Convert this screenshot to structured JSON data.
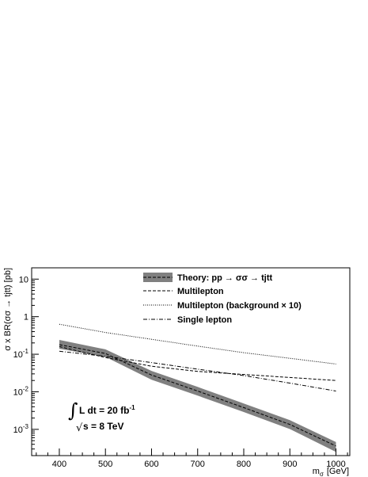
{
  "chart_data": {
    "type": "line",
    "xlabel": "m",
    "xlabel_sub": "σ",
    "xlabel_unit": "[GeV]",
    "ylabel": "σ x BR(σσ → tjtt) [pb]",
    "xlim": [
      340,
      1030
    ],
    "ylim": [
      0.0002,
      20
    ],
    "ylog": true,
    "x_ticks": [
      400,
      500,
      600,
      700,
      800,
      900,
      1000
    ],
    "x_tick_labels": [
      "400",
      "500",
      "600",
      "700",
      "800",
      "900",
      "1000"
    ],
    "y_ticks": [
      0.001,
      0.01,
      0.1,
      1,
      10
    ],
    "y_tick_labels": [
      {
        "base": "10",
        "exp": "-3"
      },
      {
        "base": "10",
        "exp": "-2"
      },
      {
        "base": "10",
        "exp": "-1"
      },
      {
        "base": "1",
        "exp": ""
      },
      {
        "base": "10",
        "exp": ""
      }
    ],
    "grid": false,
    "legend_position": "top-right",
    "series": [
      {
        "name": "Theory: pp → σσ → tjtt",
        "style": "band-dashed",
        "x": [
          400,
          500,
          600,
          700,
          800,
          900,
          1000
        ],
        "values": [
          0.18,
          0.105,
          0.028,
          0.0105,
          0.0038,
          0.00135,
          0.00036
        ],
        "band_low": [
          0.14,
          0.085,
          0.021,
          0.0079,
          0.0029,
          0.00102,
          0.00025
        ],
        "band_high": [
          0.24,
          0.135,
          0.036,
          0.0135,
          0.0049,
          0.00175,
          0.00046
        ]
      },
      {
        "name": "Multilepton",
        "style": "dashed",
        "x": [
          400,
          500,
          600,
          700,
          800,
          900,
          1000
        ],
        "values": [
          0.16,
          0.082,
          0.048,
          0.035,
          0.029,
          0.024,
          0.02
        ]
      },
      {
        "name": "Multilepton (background × 10)",
        "style": "dotted",
        "x": [
          400,
          500,
          600,
          700,
          800,
          900,
          1000
        ],
        "values": [
          0.63,
          0.38,
          0.25,
          0.165,
          0.11,
          0.078,
          0.055
        ]
      },
      {
        "name": "Single lepton",
        "style": "dashdot",
        "x": [
          400,
          500,
          600,
          700,
          800,
          900,
          1000
        ],
        "values": [
          0.12,
          0.088,
          0.06,
          0.04,
          0.027,
          0.017,
          0.0105
        ]
      }
    ],
    "annotations": {
      "lumi_integral": "∫",
      "lumi_text": "L dt = 20 fb",
      "lumi_exp": "-1",
      "energy_sqrt": "√",
      "energy_text": "s = 8 TeV"
    }
  }
}
